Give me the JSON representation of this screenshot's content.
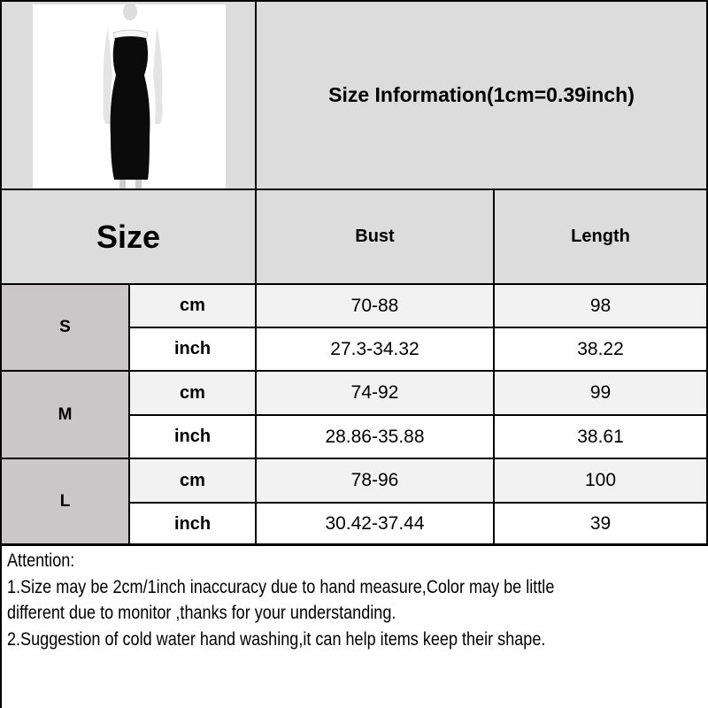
{
  "title": "Size Information(1cm=0.39inch)",
  "header": {
    "size": "Size",
    "bust": "Bust",
    "length": "Length"
  },
  "rows": [
    {
      "size": "S",
      "cm": {
        "unit": "cm",
        "bust": "70-88",
        "length": "98"
      },
      "inch": {
        "unit": "inch",
        "bust": "27.3-34.32",
        "length": "38.22"
      }
    },
    {
      "size": "M",
      "cm": {
        "unit": "cm",
        "bust": "74-92",
        "length": "99"
      },
      "inch": {
        "unit": "inch",
        "bust": "28.86-35.88",
        "length": "38.61"
      }
    },
    {
      "size": "L",
      "cm": {
        "unit": "cm",
        "bust": "78-96",
        "length": "100"
      },
      "inch": {
        "unit": "inch",
        "bust": "30.42-37.44",
        "length": "39"
      }
    }
  ],
  "notes": [
    "Attention:",
    "1.Size may be 2cm/1inch inaccuracy due to hand measure,Color may be little",
    "different due to monitor ,thanks for your understanding.",
    "2.Suggestion of cold water hand washing,it can help items keep their shape."
  ],
  "product_image": {
    "icon": "black-strapless-dress-photo"
  }
}
